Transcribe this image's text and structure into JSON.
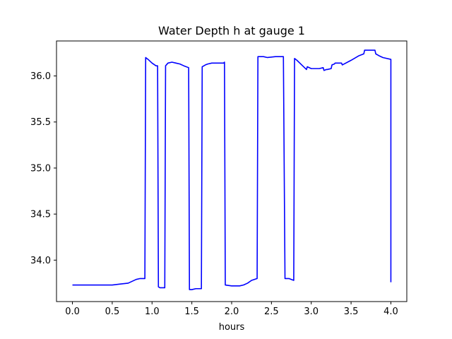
{
  "chart_data": {
    "type": "line",
    "title": "Water Depth h at gauge 1",
    "xlabel": "hours",
    "ylabel": "",
    "xlim": [
      -0.2,
      4.2
    ],
    "ylim": [
      33.55,
      36.38
    ],
    "xticks": [
      0.0,
      0.5,
      1.0,
      1.5,
      2.0,
      2.5,
      3.0,
      3.5,
      4.0
    ],
    "xtick_labels": [
      "0.0",
      "0.5",
      "1.0",
      "1.5",
      "2.0",
      "2.5",
      "3.0",
      "3.5",
      "4.0"
    ],
    "yticks": [
      34.0,
      34.5,
      35.0,
      35.5,
      36.0
    ],
    "ytick_labels": [
      "34.0",
      "34.5",
      "35.0",
      "35.5",
      "36.0"
    ],
    "grid": false,
    "series": [
      {
        "color": "#0000ff",
        "x": [
          0.0,
          0.3,
          0.5,
          0.6,
          0.7,
          0.75,
          0.8,
          0.85,
          0.91,
          0.92,
          0.95,
          1.0,
          1.05,
          1.07,
          1.08,
          1.1,
          1.15,
          1.16,
          1.17,
          1.2,
          1.25,
          1.3,
          1.35,
          1.4,
          1.46,
          1.47,
          1.5,
          1.55,
          1.6,
          1.62,
          1.63,
          1.67,
          1.7,
          1.75,
          1.8,
          1.9,
          1.91,
          1.92,
          2.0,
          2.05,
          2.1,
          2.15,
          2.2,
          2.25,
          2.32,
          2.33,
          2.35,
          2.4,
          2.45,
          2.55,
          2.64,
          2.65,
          2.67,
          2.72,
          2.78,
          2.79,
          2.82,
          2.88,
          2.94,
          2.95,
          3.0,
          3.05,
          3.1,
          3.15,
          3.16,
          3.19,
          3.2,
          3.25,
          3.26,
          3.29,
          3.3,
          3.38,
          3.39,
          3.5,
          3.6,
          3.66,
          3.67,
          3.8,
          3.81,
          3.85,
          3.9,
          4.0,
          4.0
        ],
        "y": [
          33.73,
          33.73,
          33.73,
          33.74,
          33.75,
          33.77,
          33.79,
          33.8,
          33.8,
          36.2,
          36.18,
          36.14,
          36.11,
          36.11,
          33.71,
          33.7,
          33.7,
          33.7,
          36.11,
          36.14,
          36.15,
          36.14,
          36.13,
          36.11,
          36.09,
          33.68,
          33.68,
          33.69,
          33.69,
          33.69,
          36.1,
          36.12,
          36.13,
          36.14,
          36.14,
          36.14,
          36.15,
          33.73,
          33.72,
          33.72,
          33.72,
          33.73,
          33.75,
          33.78,
          33.8,
          36.21,
          36.21,
          36.21,
          36.2,
          36.21,
          36.21,
          36.21,
          33.8,
          33.8,
          33.78,
          36.19,
          36.17,
          36.12,
          36.07,
          36.1,
          36.08,
          36.08,
          36.08,
          36.09,
          36.06,
          36.07,
          36.07,
          36.08,
          36.12,
          36.13,
          36.14,
          36.14,
          36.12,
          36.17,
          36.22,
          36.24,
          36.28,
          36.28,
          36.24,
          36.22,
          36.2,
          36.18,
          33.76
        ]
      }
    ]
  }
}
